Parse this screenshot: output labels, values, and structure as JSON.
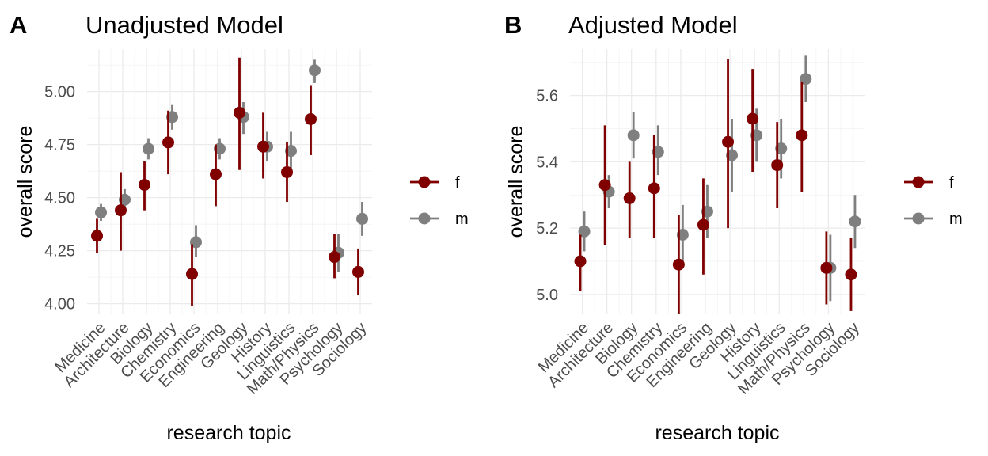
{
  "chart_data": [
    {
      "type": "pointrange",
      "panel_label": "A",
      "title": "Unadjusted Model",
      "xlabel": "research topic",
      "ylabel": "overall score",
      "ylim": [
        3.95,
        5.2
      ],
      "yticks": [
        4.0,
        4.25,
        4.5,
        4.75,
        5.0
      ],
      "ytick_labels": [
        "4.00",
        "4.25",
        "4.50",
        "4.75",
        "5.00"
      ],
      "grid": true,
      "legend_position": "right",
      "categories": [
        "Medicine",
        "Architecture",
        "Biology",
        "Chemistry",
        "Economics",
        "Engineering",
        "Geology",
        "History",
        "Linguistics",
        "Math/Physics",
        "Psychology",
        "Sociology"
      ],
      "series": [
        {
          "name": "f",
          "color": "#800000",
          "values": [
            4.32,
            4.44,
            4.56,
            4.76,
            4.14,
            4.61,
            4.9,
            4.74,
            4.62,
            4.87,
            4.22,
            4.15
          ],
          "lower": [
            4.24,
            4.25,
            4.44,
            4.61,
            3.99,
            4.46,
            4.63,
            4.59,
            4.48,
            4.7,
            4.12,
            4.04
          ],
          "upper": [
            4.4,
            4.62,
            4.67,
            4.91,
            4.28,
            4.75,
            5.16,
            4.9,
            4.76,
            5.03,
            4.33,
            4.26
          ]
        },
        {
          "name": "m",
          "color": "#7f7f7f",
          "values": [
            4.43,
            4.49,
            4.73,
            4.88,
            4.29,
            4.73,
            4.88,
            4.74,
            4.72,
            5.1,
            4.24,
            4.4
          ],
          "lower": [
            4.39,
            4.44,
            4.68,
            4.82,
            4.22,
            4.68,
            4.8,
            4.67,
            4.63,
            5.04,
            4.15,
            4.32
          ],
          "upper": [
            4.47,
            4.54,
            4.78,
            4.94,
            4.37,
            4.78,
            4.95,
            4.81,
            4.81,
            5.15,
            4.33,
            4.48
          ]
        }
      ]
    },
    {
      "type": "pointrange",
      "panel_label": "B",
      "title": "Adjusted Model",
      "xlabel": "research topic",
      "ylabel": "overall score",
      "ylim": [
        4.94,
        5.74
      ],
      "yticks": [
        5.0,
        5.2,
        5.4,
        5.6
      ],
      "ytick_labels": [
        "5.0",
        "5.2",
        "5.4",
        "5.6"
      ],
      "grid": true,
      "legend_position": "right",
      "categories": [
        "Medicine",
        "Architecture",
        "Biology",
        "Chemistry",
        "Economics",
        "Engineering",
        "Geology",
        "History",
        "Linguistics",
        "Math/Physics",
        "Psychology",
        "Sociology"
      ],
      "series": [
        {
          "name": "f",
          "color": "#800000",
          "values": [
            5.1,
            5.33,
            5.29,
            5.32,
            5.09,
            5.21,
            5.46,
            5.53,
            5.39,
            5.48,
            5.08,
            5.06
          ],
          "lower": [
            5.01,
            5.15,
            5.17,
            5.17,
            4.94,
            5.06,
            5.2,
            5.37,
            5.26,
            5.31,
            4.97,
            4.95
          ],
          "upper": [
            5.18,
            5.51,
            5.4,
            5.48,
            5.24,
            5.35,
            5.71,
            5.68,
            5.52,
            5.64,
            5.19,
            5.17
          ]
        },
        {
          "name": "m",
          "color": "#7f7f7f",
          "values": [
            5.19,
            5.31,
            5.48,
            5.43,
            5.18,
            5.25,
            5.42,
            5.48,
            5.44,
            5.65,
            5.08,
            5.22
          ],
          "lower": [
            5.13,
            5.26,
            5.41,
            5.36,
            5.09,
            5.17,
            5.31,
            5.4,
            5.35,
            5.58,
            4.98,
            5.14
          ],
          "upper": [
            5.25,
            5.36,
            5.55,
            5.51,
            5.27,
            5.33,
            5.53,
            5.56,
            5.53,
            5.72,
            5.18,
            5.3
          ]
        }
      ]
    }
  ]
}
